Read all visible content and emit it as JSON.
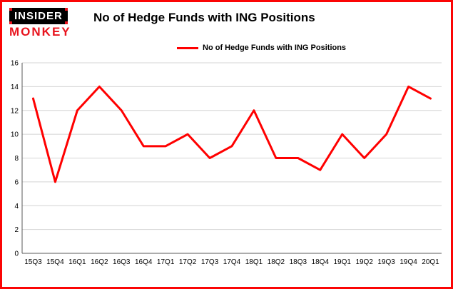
{
  "brand": {
    "line1": "INSIDER",
    "line2": "MONKEY"
  },
  "header": {
    "title": "No of Hedge Funds with ING Positions"
  },
  "legend": {
    "label": "No of Hedge Funds with ING Positions"
  },
  "colors": {
    "frame_border": "#fb0505",
    "line": "#ff0000",
    "grid": "#d4d4d4",
    "axis": "#595959",
    "text": "#000000",
    "logo_red": "#e8131d",
    "logo_black": "#000000"
  },
  "chart_data": {
    "type": "line",
    "title": "No of Hedge Funds with ING Positions",
    "categories": [
      "15Q3",
      "15Q4",
      "16Q1",
      "16Q2",
      "16Q3",
      "16Q4",
      "17Q1",
      "17Q2",
      "17Q3",
      "17Q4",
      "18Q1",
      "18Q2",
      "18Q3",
      "18Q4",
      "19Q1",
      "19Q2",
      "19Q3",
      "19Q4",
      "20Q1"
    ],
    "values": [
      13,
      6,
      12,
      14,
      12,
      9,
      9,
      10,
      8,
      9,
      12,
      8,
      8,
      7,
      10,
      8,
      10,
      14,
      13
    ],
    "series": [
      {
        "name": "No of Hedge Funds with ING Positions",
        "values": [
          13,
          6,
          12,
          14,
          12,
          9,
          9,
          10,
          8,
          9,
          12,
          8,
          8,
          7,
          10,
          8,
          10,
          14,
          13
        ]
      }
    ],
    "xlabel": "",
    "ylabel": "",
    "ylim": [
      0,
      16
    ],
    "yticks": [
      0,
      2,
      4,
      6,
      8,
      10,
      12,
      14,
      16
    ],
    "grid": true,
    "legend_position": "top"
  }
}
